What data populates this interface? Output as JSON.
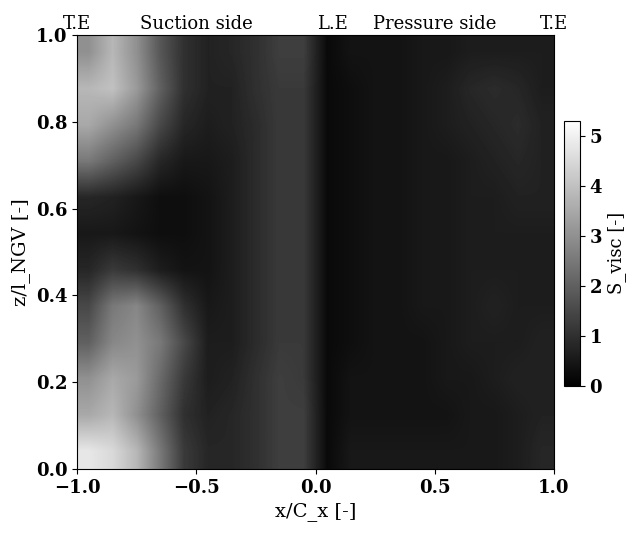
{
  "chart_data": {
    "type": "heatmap",
    "xlabel": "x/C_x [-]",
    "ylabel": "z/l_NGV [-]",
    "colorbar_label": "S_visc [-]",
    "annotations": [
      {
        "text": "T.E",
        "x": -1.0
      },
      {
        "text": "Suction side",
        "x": -0.5
      },
      {
        "text": "L.E",
        "x": 0.07
      },
      {
        "text": "Pressure side",
        "x": 0.5
      },
      {
        "text": "T.E",
        "x": 1.0
      }
    ],
    "xlim": [
      -1.0,
      1.0
    ],
    "ylim": [
      0.0,
      1.0
    ],
    "xticks": [
      {
        "value": -1.0,
        "label": "−1.0"
      },
      {
        "value": -0.5,
        "label": "−0.5"
      },
      {
        "value": 0.0,
        "label": "0.0"
      },
      {
        "value": 0.5,
        "label": "0.5"
      },
      {
        "value": 1.0,
        "label": "1.0"
      }
    ],
    "yticks": [
      0.0,
      0.2,
      0.4,
      0.6,
      0.8,
      1.0
    ],
    "colorbar_range": [
      0,
      5.3
    ],
    "colorbar_ticks": [
      0,
      1,
      2,
      3,
      4,
      5
    ],
    "cells": [
      [
        4.8,
        4.5,
        3.8,
        2.5,
        1.2,
        0.8,
        0.8,
        1.0,
        1.3,
        1.3,
        0.2,
        0.5,
        0.5,
        0.5,
        0.5,
        0.5,
        0.5,
        0.5,
        0.6,
        0.8
      ],
      [
        3.5,
        3.8,
        3.0,
        2.0,
        1.0,
        0.7,
        0.8,
        1.0,
        1.3,
        1.3,
        0.2,
        0.4,
        0.4,
        0.4,
        0.4,
        0.4,
        0.5,
        0.5,
        0.6,
        0.7
      ],
      [
        3.0,
        3.5,
        3.2,
        2.2,
        1.2,
        0.6,
        0.7,
        1.0,
        1.3,
        1.2,
        0.2,
        0.4,
        0.4,
        0.4,
        0.4,
        0.5,
        0.5,
        0.6,
        0.7,
        0.7
      ],
      [
        2.0,
        2.8,
        3.0,
        2.5,
        1.5,
        0.6,
        0.6,
        0.9,
        1.2,
        1.2,
        0.2,
        0.3,
        0.4,
        0.4,
        0.4,
        0.5,
        0.6,
        0.6,
        0.6,
        0.7
      ],
      [
        1.5,
        2.5,
        2.8,
        2.0,
        1.0,
        0.5,
        0.6,
        0.9,
        1.2,
        1.2,
        0.2,
        0.3,
        0.4,
        0.4,
        0.5,
        0.5,
        0.6,
        0.7,
        0.6,
        0.6
      ],
      [
        0.8,
        1.2,
        1.0,
        0.6,
        0.4,
        0.4,
        0.6,
        0.9,
        1.2,
        1.2,
        0.2,
        0.3,
        0.4,
        0.4,
        0.5,
        0.5,
        0.6,
        0.6,
        0.6,
        0.6
      ],
      [
        0.5,
        0.5,
        0.4,
        0.3,
        0.3,
        0.4,
        0.6,
        0.9,
        1.2,
        1.2,
        0.2,
        0.3,
        0.4,
        0.4,
        0.5,
        0.5,
        0.6,
        0.6,
        0.6,
        0.6
      ],
      [
        0.8,
        0.7,
        0.5,
        0.3,
        0.3,
        0.4,
        0.6,
        0.9,
        1.2,
        1.2,
        0.2,
        0.3,
        0.4,
        0.4,
        0.5,
        0.5,
        0.6,
        0.6,
        0.7,
        0.7
      ],
      [
        2.5,
        2.0,
        1.5,
        0.8,
        0.5,
        0.5,
        0.6,
        0.9,
        1.2,
        1.2,
        0.2,
        0.3,
        0.4,
        0.4,
        0.5,
        0.5,
        0.6,
        0.7,
        0.8,
        0.7
      ],
      [
        3.5,
        3.0,
        2.5,
        1.5,
        0.8,
        0.6,
        0.7,
        0.9,
        1.2,
        1.2,
        0.2,
        0.3,
        0.4,
        0.4,
        0.5,
        0.6,
        0.7,
        0.8,
        0.9,
        0.7
      ],
      [
        3.8,
        4.0,
        3.2,
        2.0,
        1.0,
        0.7,
        0.7,
        1.0,
        1.2,
        1.2,
        0.2,
        0.3,
        0.4,
        0.4,
        0.5,
        0.6,
        0.8,
        0.9,
        0.8,
        0.6
      ],
      [
        3.0,
        3.8,
        3.0,
        1.8,
        1.0,
        0.7,
        0.8,
        1.0,
        1.3,
        1.3,
        0.2,
        0.4,
        0.4,
        0.4,
        0.5,
        0.5,
        0.6,
        0.6,
        0.6,
        0.6
      ]
    ]
  }
}
